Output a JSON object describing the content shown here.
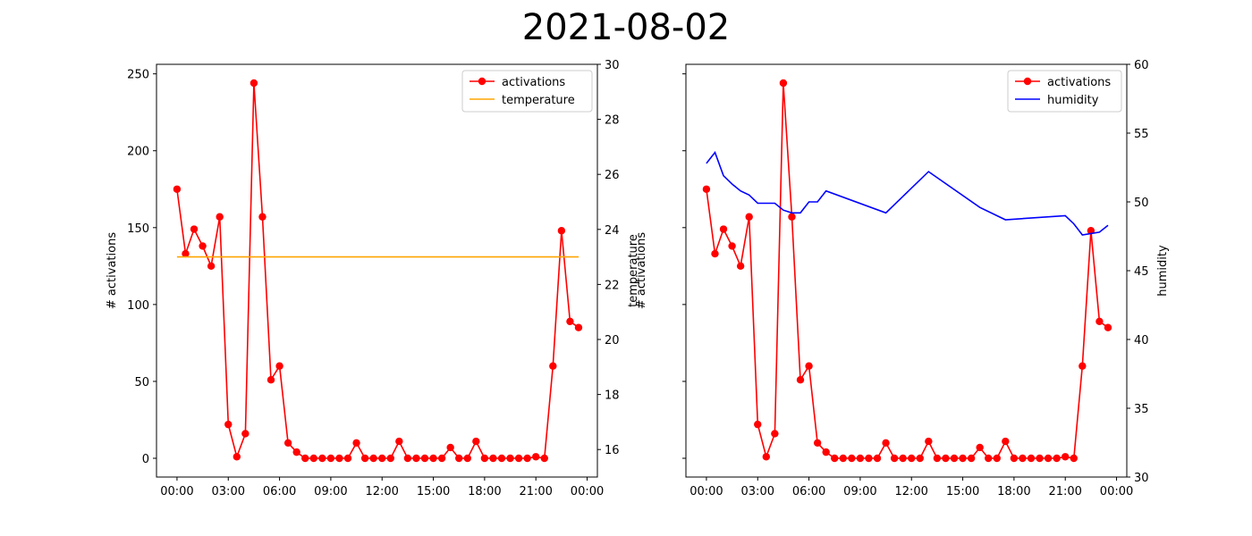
{
  "page_title": "2021-08-02",
  "chart_data": [
    {
      "type": "line",
      "title": "2021-08-02",
      "xlabel": "",
      "ylabel": "# activations",
      "y2label": "temperature",
      "xticks": [
        "00:00",
        "03:00",
        "06:00",
        "09:00",
        "12:00",
        "15:00",
        "18:00",
        "21:00",
        "00:00"
      ],
      "x_unit": "hour of day",
      "xlim": [
        -1.2,
        24.6
      ],
      "ylim": [
        -12.2,
        256.2
      ],
      "y2lim": [
        15,
        30
      ],
      "yticks": [
        0,
        50,
        100,
        150,
        200,
        250
      ],
      "y2ticks": [
        16,
        18,
        20,
        22,
        24,
        26,
        28,
        30
      ],
      "legend": "top-right",
      "series": [
        {
          "name": "activations",
          "axis": "left",
          "color": "#ff0000",
          "marker": "circle",
          "x": [
            0,
            0.5,
            1,
            1.5,
            2,
            2.5,
            3,
            3.5,
            4,
            4.5,
            5,
            5.5,
            6,
            6.5,
            7,
            7.5,
            8,
            8.5,
            9,
            9.5,
            10,
            10.5,
            11,
            11.5,
            12,
            12.5,
            13,
            13.5,
            14,
            14.5,
            15,
            15.5,
            16,
            16.5,
            17,
            17.5,
            18,
            18.5,
            19,
            19.5,
            20,
            20.5,
            21,
            21.5,
            22,
            22.5,
            23,
            23.5
          ],
          "values": [
            175,
            133,
            149,
            138,
            125,
            157,
            22,
            1,
            16,
            244,
            157,
            51,
            60,
            10,
            4,
            0,
            0,
            0,
            0,
            0,
            0,
            10,
            0,
            0,
            0,
            0,
            11,
            0,
            0,
            0,
            0,
            0,
            7,
            0,
            0,
            11,
            0,
            0,
            0,
            0,
            0,
            0,
            1,
            0,
            60,
            148,
            89,
            85
          ]
        },
        {
          "name": "temperature",
          "axis": "right",
          "color": "#ffa500",
          "marker": "none",
          "x": [
            0,
            23.5
          ],
          "values": [
            23,
            23
          ]
        }
      ]
    },
    {
      "type": "line",
      "xlabel": "",
      "ylabel": "# activations",
      "y2label": "humidity",
      "xticks": [
        "00:00",
        "03:00",
        "06:00",
        "09:00",
        "12:00",
        "15:00",
        "18:00",
        "21:00",
        "00:00"
      ],
      "x_unit": "hour of day",
      "xlim": [
        -1.2,
        24.6
      ],
      "ylim": [
        -12.2,
        256.2
      ],
      "y2lim": [
        30,
        60
      ],
      "yticks": [
        0,
        50,
        100,
        150,
        200,
        250
      ],
      "ytick_labels_shown": false,
      "y2ticks": [
        30,
        35,
        40,
        45,
        50,
        55,
        60
      ],
      "legend": "top-right",
      "series": [
        {
          "name": "activations",
          "axis": "left",
          "color": "#ff0000",
          "marker": "circle",
          "x": [
            0,
            0.5,
            1,
            1.5,
            2,
            2.5,
            3,
            3.5,
            4,
            4.5,
            5,
            5.5,
            6,
            6.5,
            7,
            7.5,
            8,
            8.5,
            9,
            9.5,
            10,
            10.5,
            11,
            11.5,
            12,
            12.5,
            13,
            13.5,
            14,
            14.5,
            15,
            15.5,
            16,
            16.5,
            17,
            17.5,
            18,
            18.5,
            19,
            19.5,
            20,
            20.5,
            21,
            21.5,
            22,
            22.5,
            23,
            23.5
          ],
          "values": [
            175,
            133,
            149,
            138,
            125,
            157,
            22,
            1,
            16,
            244,
            157,
            51,
            60,
            10,
            4,
            0,
            0,
            0,
            0,
            0,
            0,
            10,
            0,
            0,
            0,
            0,
            11,
            0,
            0,
            0,
            0,
            0,
            7,
            0,
            0,
            11,
            0,
            0,
            0,
            0,
            0,
            0,
            1,
            0,
            60,
            148,
            89,
            85
          ]
        },
        {
          "name": "humidity",
          "axis": "right",
          "color": "#0000ff",
          "marker": "none",
          "x": [
            0,
            0.5,
            1,
            1.5,
            2,
            2.5,
            3,
            3.5,
            4,
            4.5,
            5,
            5.5,
            6,
            6.5,
            7,
            10.5,
            13,
            16,
            17.5,
            21,
            21.5,
            22,
            22.5,
            23,
            23.5
          ],
          "values": [
            52.8,
            53.6,
            51.9,
            51.3,
            50.8,
            50.5,
            49.9,
            49.9,
            49.9,
            49.4,
            49.2,
            49.2,
            50.0,
            50.0,
            50.8,
            49.2,
            52.2,
            49.6,
            48.7,
            49.0,
            48.4,
            47.6,
            47.7,
            47.8,
            48.3
          ]
        }
      ]
    }
  ]
}
